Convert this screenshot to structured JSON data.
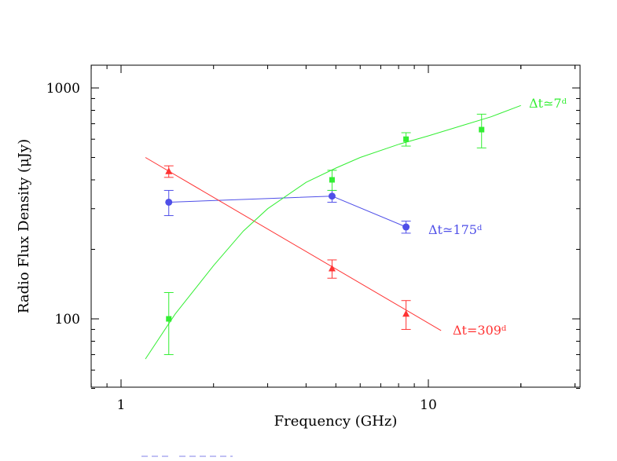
{
  "chart_data": {
    "type": "scatter",
    "title": "",
    "xlabel": "Frequency (GHz)",
    "ylabel": "Radio Flux Density (μJy)",
    "xscale": "log",
    "yscale": "log",
    "xlim": [
      0.8,
      30
    ],
    "ylim": [
      50,
      1300
    ],
    "x_tick_labels": [
      {
        "value": 1,
        "label": "1"
      },
      {
        "value": 10,
        "label": "10"
      }
    ],
    "y_tick_labels": [
      {
        "value": 100,
        "label": "100"
      },
      {
        "value": 1000,
        "label": "1000"
      }
    ],
    "grid": false,
    "series": [
      {
        "name": "Δt≃175ᵈ",
        "color": "#4f4fe8",
        "marker": "circle",
        "points": [
          {
            "x": 1.43,
            "y": 320,
            "err_lo": 280,
            "err_hi": 360
          },
          {
            "x": 4.86,
            "y": 340,
            "err_lo": 320,
            "err_hi": 360
          },
          {
            "x": 8.46,
            "y": 250,
            "err_lo": 235,
            "err_hi": 265
          }
        ],
        "fit": [
          [
            1.43,
            320
          ],
          [
            4.86,
            340
          ],
          [
            8.46,
            250
          ]
        ]
      },
      {
        "name": "Δt≃309ᵈ",
        "color": "#ff3333",
        "marker": "triangle",
        "points": [
          {
            "x": 1.43,
            "y": 435,
            "err_lo": 410,
            "err_hi": 460
          },
          {
            "x": 4.86,
            "y": 165,
            "err_lo": 150,
            "err_hi": 180
          },
          {
            "x": 8.46,
            "y": 105,
            "err_lo": 90,
            "err_hi": 120
          }
        ],
        "fit": [
          [
            1.2,
            500
          ],
          [
            11,
            89
          ]
        ]
      },
      {
        "name": "Δt≃7ᵈ",
        "color": "#33ee33",
        "marker": "square",
        "points": [
          {
            "x": 1.43,
            "y": 100,
            "err_lo": 70,
            "err_hi": 130
          },
          {
            "x": 4.86,
            "y": 400,
            "err_lo": 360,
            "err_hi": 440
          },
          {
            "x": 8.46,
            "y": 600,
            "err_lo": 560,
            "err_hi": 640
          },
          {
            "x": 14.9,
            "y": 660,
            "err_lo": 550,
            "err_hi": 770
          }
        ],
        "fit": [
          [
            1.2,
            67
          ],
          [
            1.5,
            105
          ],
          [
            2.0,
            170
          ],
          [
            2.5,
            240
          ],
          [
            3.0,
            300
          ],
          [
            4.0,
            390
          ],
          [
            5.0,
            450
          ],
          [
            6.0,
            500
          ],
          [
            8.0,
            570
          ],
          [
            10.0,
            620
          ],
          [
            13.0,
            690
          ],
          [
            16.0,
            750
          ],
          [
            20.0,
            840
          ]
        ]
      }
    ]
  },
  "series_labels": {
    "s175": "Δt≃175ᵈ",
    "s309": "Δt=309ᵈ",
    "s7": "Δt≃7ᵈ"
  }
}
